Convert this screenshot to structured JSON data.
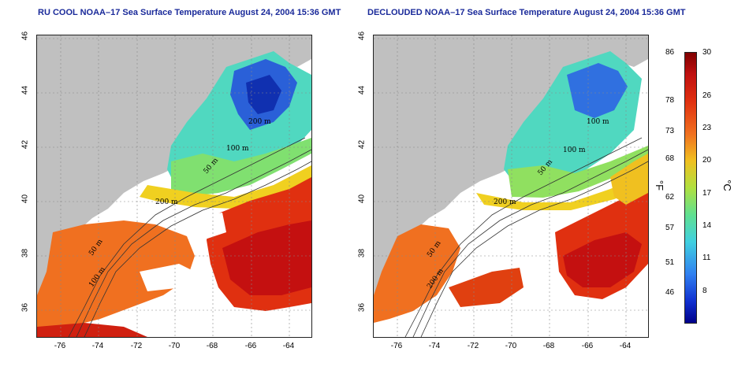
{
  "titles": {
    "left": "RU COOL NOAA–17 Sea Surface Temperature August 24, 2004 15:36 GMT",
    "right": "DECLOUDED NOAA–17 Sea Surface Temperature August 24, 2004 15:36 GMT"
  },
  "axes": {
    "lon_ticks": [
      "-76",
      "-74",
      "-72",
      "-70",
      "-68",
      "-66",
      "-64"
    ],
    "lat_ticks": [
      "46",
      "44",
      "42",
      "40",
      "38",
      "36"
    ],
    "lon_range": [
      -77,
      -63
    ],
    "lat_range": [
      35,
      46
    ]
  },
  "contours": {
    "left": [
      "200 m",
      "100 m",
      "50 m",
      "200 m",
      "50 m",
      "100 m"
    ],
    "right": [
      "100 m",
      "100 m",
      "50 m",
      "200 m",
      "50 m",
      "200 m"
    ]
  },
  "colorbar": {
    "fahrenheit": [
      "86",
      "78",
      "73",
      "68",
      "62",
      "57",
      "51",
      "46"
    ],
    "celsius": [
      "30",
      "26",
      "23",
      "20",
      "17",
      "14",
      "11",
      "8"
    ],
    "unit_f": "°F",
    "unit_c": "°C",
    "range_c": [
      5,
      30
    ]
  },
  "colors": {
    "land": "#c0c0c0",
    "cloud": "#ffffff",
    "warm": "#e03010",
    "hot": "#c41010",
    "orange": "#f07020",
    "yellow": "#f0d020",
    "green": "#80e060",
    "cyan": "#40d8d0",
    "blue": "#3070e0",
    "deep_blue": "#1030b0"
  }
}
